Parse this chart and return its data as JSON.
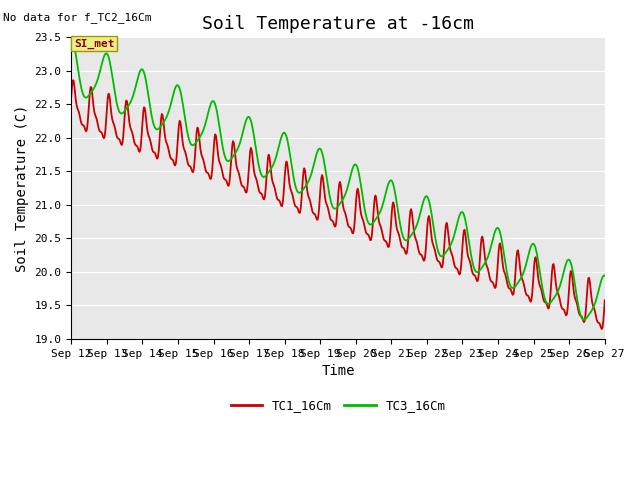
{
  "title": "Soil Temperature at -16cm",
  "xlabel": "Time",
  "ylabel": "Soil Temperature (C)",
  "no_data_text": "No data for f_TC2_16Cm",
  "legend_label_text": "SI_met",
  "legend_entries": [
    "TC1_16Cm",
    "TC3_16Cm"
  ],
  "ylim": [
    19.0,
    23.5
  ],
  "yticks": [
    19.0,
    19.5,
    20.0,
    20.5,
    21.0,
    21.5,
    22.0,
    22.5,
    23.0,
    23.5
  ],
  "x_tick_labels": [
    "Sep 12",
    "Sep 13",
    "Sep 14",
    "Sep 15",
    "Sep 16",
    "Sep 17",
    "Sep 18",
    "Sep 19",
    "Sep 20",
    "Sep 21",
    "Sep 22",
    "Sep 23",
    "Sep 24",
    "Sep 25",
    "Sep 26",
    "Sep 27"
  ],
  "background_color": "#ffffff",
  "plot_bg_color": "#e8e8e8",
  "grid_color": "#ffffff",
  "title_fontsize": 13,
  "axis_label_fontsize": 10,
  "tick_fontsize": 8,
  "line_width": 1.3,
  "tc1_color": "#cc0000",
  "tc3_color": "#00bb00",
  "legend_fontsize": 9,
  "no_data_fontsize": 8,
  "si_met_fontsize": 8
}
